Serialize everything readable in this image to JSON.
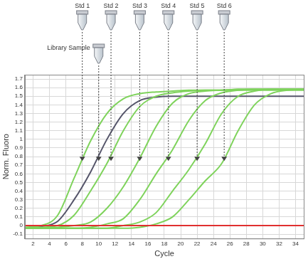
{
  "chart_data": {
    "type": "line",
    "x_label": "Cycle",
    "y_label": "Norm. Fluoro",
    "x": [
      1,
      3,
      5,
      7,
      9,
      11,
      13,
      15,
      17,
      19,
      21,
      23,
      25,
      27,
      29,
      31,
      33,
      35
    ],
    "series": [
      {
        "color": "#e03030",
        "values": [
          0,
          0,
          0,
          0,
          0,
          0,
          0,
          0,
          0,
          0,
          0,
          0,
          0,
          0,
          0,
          0,
          0,
          0
        ]
      },
      {
        "name": "Std 6",
        "color": "#7fd35c",
        "values": [
          -0.03,
          -0.03,
          -0.03,
          -0.03,
          -0.03,
          -0.03,
          -0.03,
          -0.02,
          0.02,
          0.1,
          0.3,
          0.52,
          0.72,
          1.1,
          1.4,
          1.53,
          1.57,
          1.58
        ]
      },
      {
        "name": "Std 5",
        "color": "#7fd35c",
        "values": [
          -0.03,
          -0.03,
          -0.03,
          -0.03,
          -0.03,
          -0.03,
          0.0,
          0.04,
          0.15,
          0.4,
          0.65,
          0.95,
          1.3,
          1.5,
          1.56,
          1.58,
          1.58,
          1.58
        ]
      },
      {
        "name": "Std 4",
        "color": "#7fd35c",
        "values": [
          -0.03,
          -0.03,
          -0.03,
          -0.03,
          -0.02,
          0.02,
          0.08,
          0.3,
          0.6,
          0.88,
          1.22,
          1.45,
          1.54,
          1.57,
          1.58,
          1.58,
          1.58,
          1.58
        ]
      },
      {
        "name": "Std 3",
        "color": "#7fd35c",
        "values": [
          -0.03,
          -0.03,
          -0.02,
          0.0,
          0.04,
          0.2,
          0.45,
          0.78,
          1.15,
          1.42,
          1.53,
          1.56,
          1.57,
          1.58,
          1.58,
          1.58,
          1.58,
          1.58
        ]
      },
      {
        "name": "Std 2",
        "color": "#7fd35c",
        "values": [
          -0.03,
          -0.02,
          0.0,
          0.12,
          0.4,
          0.72,
          1.1,
          1.38,
          1.5,
          1.54,
          1.56,
          1.57,
          1.57,
          1.57,
          1.57,
          1.57,
          1.57,
          1.57
        ]
      },
      {
        "name": "Std 1",
        "color": "#7fd35c",
        "values": [
          -0.02,
          0.0,
          0.12,
          0.55,
          0.98,
          1.3,
          1.47,
          1.53,
          1.55,
          1.56,
          1.57,
          1.57,
          1.57,
          1.58,
          1.58,
          1.58,
          1.58,
          1.58
        ]
      },
      {
        "name": "Library Sample",
        "color": "#55556a",
        "values": [
          -0.03,
          -0.01,
          0.05,
          0.3,
          0.62,
          1.0,
          1.3,
          1.45,
          1.49,
          1.5,
          1.5,
          1.5,
          1.5,
          1.5,
          1.5,
          1.5,
          1.5,
          1.5
        ]
      }
    ],
    "standard_markers": [
      {
        "text": "Std 1",
        "x": 8,
        "y": 0.75
      },
      {
        "text": "Std 2",
        "x": 11.5,
        "y": 0.75
      },
      {
        "text": "Std 3",
        "x": 15,
        "y": 0.75
      },
      {
        "text": "Std 4",
        "x": 18.5,
        "y": 0.75
      },
      {
        "text": "Std 5",
        "x": 22,
        "y": 0.75
      },
      {
        "text": "Std 6",
        "x": 25.3,
        "y": 0.75
      }
    ],
    "sample_markers": [
      {
        "text": "Library Sample",
        "x": 10,
        "y": 0.75
      }
    ],
    "xlim": [
      1,
      35
    ],
    "xticks": [
      2,
      4,
      6,
      8,
      10,
      12,
      14,
      16,
      18,
      20,
      22,
      24,
      26,
      28,
      30,
      32,
      34
    ],
    "ylim": [
      -0.15,
      1.75
    ],
    "yticks": [
      -0.1,
      0,
      0.1,
      0.2,
      0.3,
      0.4,
      0.5,
      0.6,
      0.7,
      0.8,
      0.9,
      1,
      1.1,
      1.2,
      1.3,
      1.4,
      1.5,
      1.6,
      1.7
    ],
    "grid": true
  }
}
